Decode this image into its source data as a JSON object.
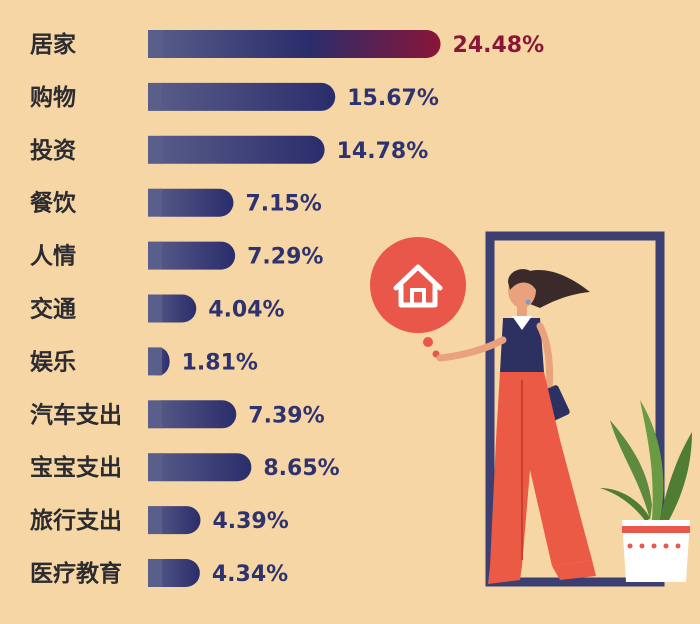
{
  "chart_data": {
    "type": "bar",
    "orientation": "horizontal",
    "categories": [
      "居家",
      "购物",
      "投资",
      "餐饮",
      "人情",
      "交通",
      "娱乐",
      "汽车支出",
      "宝宝支出",
      "旅行支出",
      "医疗教育"
    ],
    "values": [
      24.48,
      15.67,
      14.78,
      7.15,
      7.29,
      4.04,
      1.81,
      7.39,
      8.65,
      4.39,
      4.34
    ],
    "value_labels": [
      "24.48%",
      "15.67%",
      "14.78%",
      "7.15%",
      "7.29%",
      "4.04%",
      "1.81%",
      "7.39%",
      "8.65%",
      "4.39%",
      "4.34%"
    ],
    "unit": "%",
    "highlight_index": 0,
    "grid": false,
    "legend": "none"
  },
  "colors": {
    "background": "#f6d6a4",
    "bar_gradient_start": "#5a5e8a",
    "bar_gradient_end": "#2a2d6b",
    "highlight_end": "#8a1538",
    "label_text": "#2b2b30",
    "value_text": "#2e3370",
    "highlight_text": "#8a1538",
    "house_circle": "#e8574a"
  },
  "illustration": {
    "icons": [
      "house-icon",
      "woman-figure",
      "potted-plant",
      "door-frame"
    ]
  }
}
